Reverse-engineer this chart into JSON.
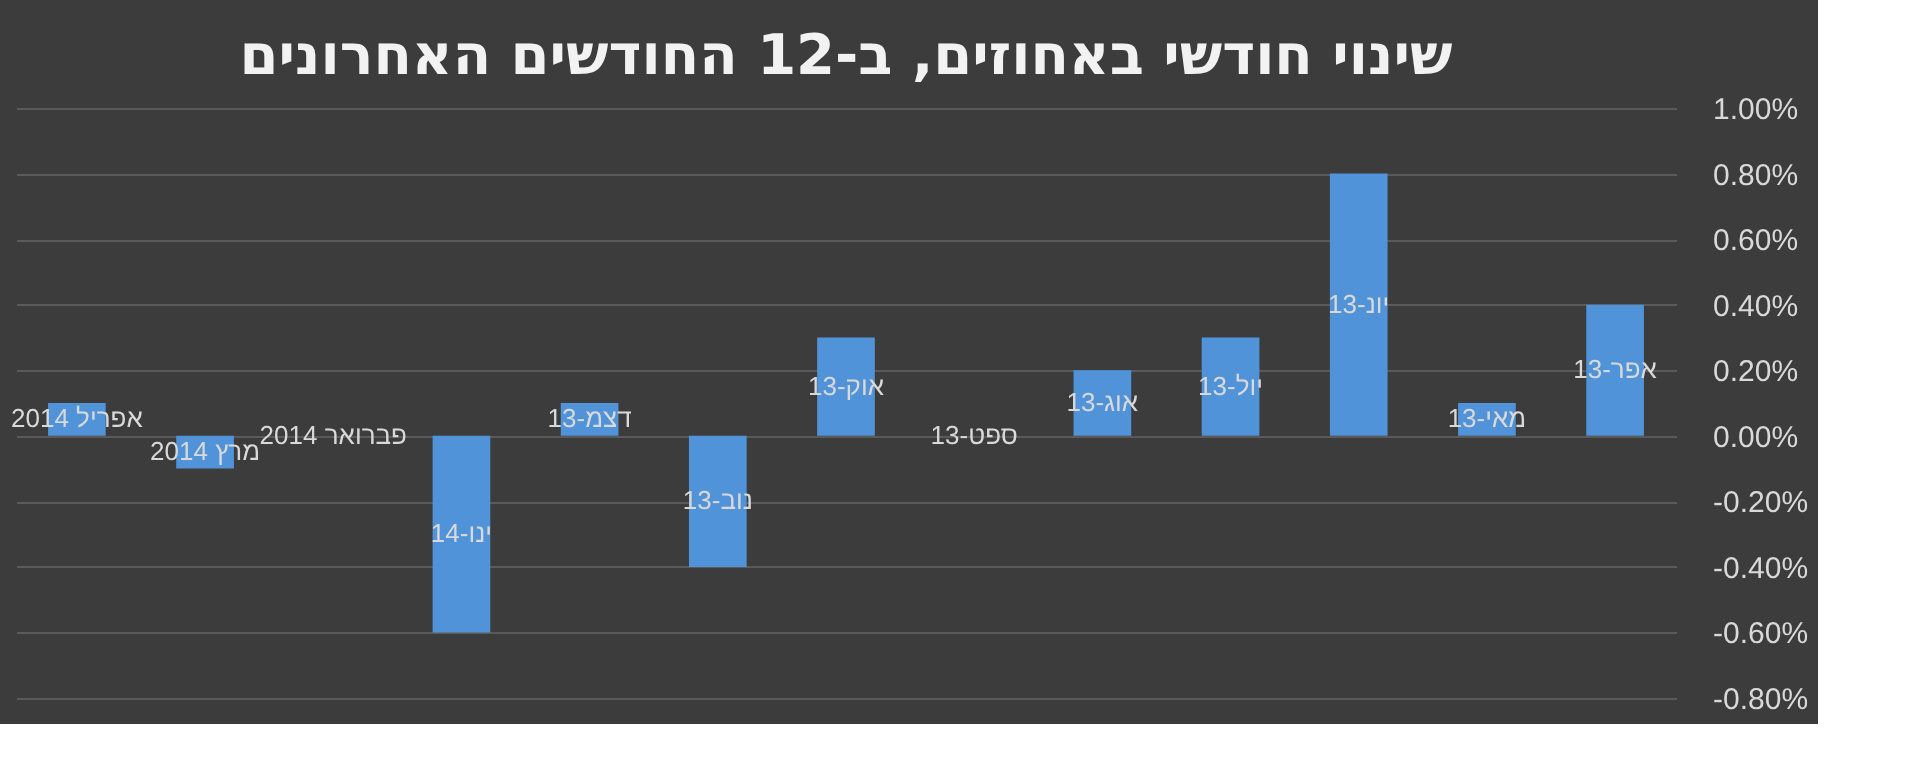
{
  "chart_data": {
    "type": "bar",
    "title": "שינוי חודשי באחוזים, ב-12 החודשים האחרונים",
    "categories": [
      "אפריל 2014",
      "מרץ 2014",
      "פברואר 2014",
      "ינו-14",
      "דצמ-13",
      "נוב-13",
      "אוק-13",
      "ספט-13",
      "אוג-13",
      "יול-13",
      "יונ-13",
      "מאי-13",
      "אפר-13"
    ],
    "values": [
      0.1,
      -0.1,
      0,
      -0.6,
      0.1,
      -0.4,
      0.3,
      0,
      0.2,
      0.3,
      0.8,
      0.1,
      0.4
    ],
    "color": "#5093d8",
    "ylim": [
      -0.8,
      1.0
    ],
    "yticks": [
      {
        "value": -0.8,
        "label": "-0.80%"
      },
      {
        "value": -0.6,
        "label": "-0.60%"
      },
      {
        "value": -0.4,
        "label": "-0.40%"
      },
      {
        "value": -0.2,
        "label": "-0.20%"
      },
      {
        "value": 0,
        "label": "0.00%"
      },
      {
        "value": 0.2,
        "label": "0.20%"
      },
      {
        "value": 0.4,
        "label": "0.40%"
      },
      {
        "value": 0.6,
        "label": "0.60%"
      },
      {
        "value": 0.8,
        "label": "0.80%"
      },
      {
        "value": 1.0,
        "label": "1.00%"
      }
    ],
    "grid": "y",
    "tick_labels": "y"
  }
}
